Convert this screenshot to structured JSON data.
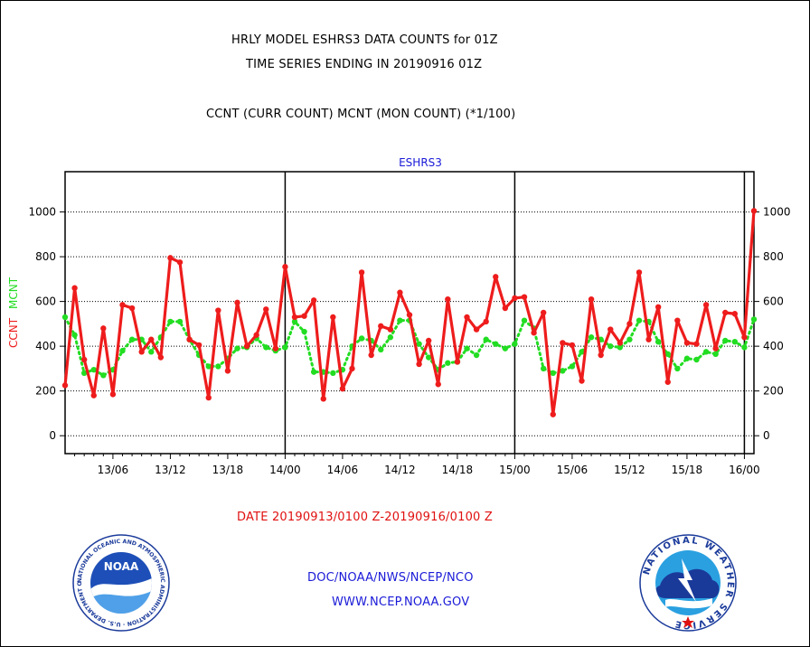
{
  "header": {
    "title_line1": "HRLY MODEL ESHRS3 DATA COUNTS for 01Z",
    "title_line2": "TIME SERIES ENDING IN 20190916 01Z",
    "subtitle": "CCNT (CURR COUNT) MCNT (MON COUNT) (*1/100)"
  },
  "footer": {
    "date_range": "DATE 20190913/0100 Z-20190916/0100 Z",
    "org_line": "DOC/NOAA/NWS/NCEP/NCO",
    "url_line": "WWW.NCEP.NOAA.GOV"
  },
  "logos": {
    "noaa": {
      "name": "NOAA",
      "ring_text": "NATIONAL OCEANIC AND ATMOSPHERIC ADMINISTRATION · U.S. DEPARTMENT OF COMMERCE"
    },
    "nws": {
      "ring_text": "NATIONAL WEATHER SERVICE"
    }
  },
  "colors": {
    "ccnt": "#ee1c1c",
    "mcnt": "#22dd22",
    "axis": "#000000",
    "blue_text": "#1a1ad8"
  },
  "chart_data": {
    "type": "line",
    "title": "ESHRS3",
    "ylabel_left": [
      "CCNT",
      "MCNT"
    ],
    "ylim": [
      -80,
      1180
    ],
    "yticks": [
      0,
      200,
      400,
      600,
      800,
      1000
    ],
    "xlim": [
      0,
      72
    ],
    "xticks": [
      {
        "x": 5,
        "label": "13/06"
      },
      {
        "x": 11,
        "label": "13/12"
      },
      {
        "x": 17,
        "label": "13/18"
      },
      {
        "x": 23,
        "label": "14/00"
      },
      {
        "x": 29,
        "label": "14/06"
      },
      {
        "x": 35,
        "label": "14/12"
      },
      {
        "x": 41,
        "label": "14/18"
      },
      {
        "x": 47,
        "label": "15/00"
      },
      {
        "x": 53,
        "label": "15/06"
      },
      {
        "x": 59,
        "label": "15/12"
      },
      {
        "x": 65,
        "label": "15/18"
      },
      {
        "x": 71,
        "label": "16/00"
      }
    ],
    "day_boundaries": [
      23,
      47,
      71
    ],
    "grid": true,
    "series": [
      {
        "name": "CCNT",
        "style": "solid",
        "values": [
          225,
          660,
          340,
          180,
          480,
          185,
          585,
          570,
          375,
          430,
          350,
          795,
          775,
          430,
          405,
          170,
          560,
          290,
          595,
          400,
          450,
          565,
          390,
          755,
          530,
          535,
          605,
          165,
          530,
          210,
          300,
          730,
          360,
          490,
          475,
          640,
          540,
          320,
          425,
          230,
          610,
          330,
          530,
          475,
          510,
          710,
          570,
          615,
          620,
          460,
          550,
          95,
          415,
          405,
          245,
          610,
          360,
          475,
          415,
          500,
          730,
          430,
          575,
          240,
          515,
          415,
          410,
          585,
          390,
          550,
          545,
          440,
          1005
        ]
      },
      {
        "name": "MCNT",
        "style": "dotted",
        "values": [
          530,
          450,
          280,
          295,
          270,
          295,
          380,
          430,
          430,
          375,
          440,
          510,
          510,
          430,
          360,
          310,
          310,
          345,
          390,
          395,
          435,
          395,
          380,
          395,
          510,
          465,
          285,
          285,
          280,
          295,
          400,
          435,
          425,
          385,
          440,
          515,
          515,
          410,
          350,
          295,
          325,
          330,
          390,
          360,
          430,
          410,
          390,
          410,
          515,
          480,
          300,
          280,
          290,
          310,
          375,
          440,
          430,
          400,
          395,
          430,
          515,
          510,
          420,
          365,
          300,
          345,
          340,
          375,
          365,
          425,
          420,
          395,
          520
        ]
      }
    ]
  }
}
